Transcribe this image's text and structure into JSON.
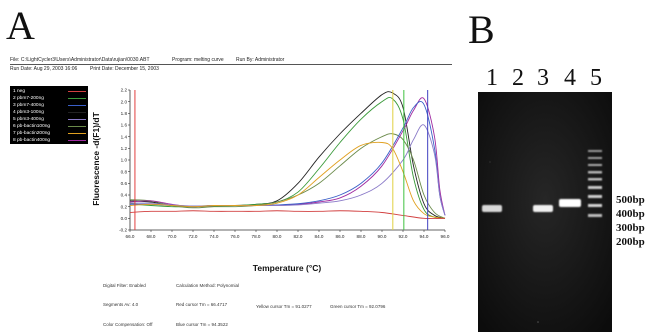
{
  "panel_a": {
    "letter": "A",
    "header": {
      "file_line": "File: C:\\LightCycler3\\Users\\Administrator\\Data\\rujian\\0030.ABT",
      "program": "Program:  melting curve",
      "run_by": "Run By: Administrator",
      "run_date": "Run Date:  Aug 29, 2003 16:06",
      "print_date": "Print Date:  December 15, 2003"
    },
    "footer": {
      "digital_filter": "Digital Filter: Enabled",
      "calc_method": "Calculation Method: Polynomial",
      "segment": "Segments Av: 4.0",
      "red_tm": "Red cursor Tm = 66.4717",
      "yellow_tm": "Yellow cursor Tm = 91.0277",
      "green_tm": "Green cursor Tm = 92.0796",
      "color_comp": "Color Compensation: Off",
      "blue_tm": "Blue cursor Tm = 94.3522"
    }
  },
  "chart_data": {
    "type": "line",
    "title": "",
    "xlabel": "Temperature (°C)",
    "ylabel": "Fluorescence -d(F1)/dT",
    "xlim": [
      66.0,
      96.0
    ],
    "ylim": [
      -0.2,
      2.2
    ],
    "xticks": [
      "66.0",
      "68.0",
      "70.0",
      "72.0",
      "74.0",
      "76.0",
      "78.0",
      "80.0",
      "82.0",
      "84.0",
      "86.0",
      "88.0",
      "90.0",
      "92.0",
      "94.0",
      "96.0"
    ],
    "yticks": [
      "2.2",
      "2.0",
      "1.8",
      "1.6",
      "1.4",
      "1.2",
      "1.0",
      "0.8",
      "0.6",
      "0.4",
      "0.2",
      "0.0",
      "-0.2"
    ],
    "legend_position": "top-left, outside plot",
    "series": [
      {
        "name": "1 neg",
        "color": "#d24040"
      },
      {
        "name": "2 pbm7-200ng",
        "color": "#3a9a3a"
      },
      {
        "name": "3 pbm7-400ng",
        "color": "#3a5fc8"
      },
      {
        "name": "4 pbm3-100ng",
        "color": "#222222"
      },
      {
        "name": "5 pbm3-400ng",
        "color": "#8a7ac8"
      },
      {
        "name": "6 pb-bactin100ng",
        "color": "#6a8a4a"
      },
      {
        "name": "7 pb-bactin200ng",
        "color": "#e0a020"
      },
      {
        "name": "8 pb-bactin400ng",
        "color": "#a02aa0"
      }
    ],
    "cursors": [
      {
        "label": "Red",
        "x": 66.47,
        "color": "#e04040"
      },
      {
        "label": "Yellow",
        "x": 91.03,
        "color": "#e0d040"
      },
      {
        "label": "Green",
        "x": 92.08,
        "color": "#40c040"
      },
      {
        "label": "Blue",
        "x": 94.35,
        "color": "#4040c0"
      }
    ],
    "curves": [
      {
        "series": 3,
        "points": [
          [
            66,
            0.3
          ],
          [
            68,
            0.28
          ],
          [
            70,
            0.22
          ],
          [
            72,
            0.2
          ],
          [
            74,
            0.22
          ],
          [
            76,
            0.22
          ],
          [
            78,
            0.24
          ],
          [
            80,
            0.3
          ],
          [
            82,
            0.6
          ],
          [
            84,
            1.05
          ],
          [
            86,
            1.45
          ],
          [
            88,
            1.8
          ],
          [
            90,
            2.12
          ],
          [
            91,
            2.15
          ],
          [
            92,
            1.9
          ],
          [
            93,
            0.9
          ],
          [
            94,
            0.25
          ],
          [
            95,
            0.05
          ],
          [
            96,
            0.0
          ]
        ]
      },
      {
        "series": 1,
        "points": [
          [
            66,
            0.25
          ],
          [
            68,
            0.22
          ],
          [
            70,
            0.2
          ],
          [
            72,
            0.2
          ],
          [
            74,
            0.21
          ],
          [
            76,
            0.22
          ],
          [
            78,
            0.24
          ],
          [
            80,
            0.28
          ],
          [
            82,
            0.45
          ],
          [
            84,
            0.85
          ],
          [
            86,
            1.3
          ],
          [
            88,
            1.7
          ],
          [
            90,
            2.0
          ],
          [
            91,
            2.05
          ],
          [
            92,
            1.7
          ],
          [
            93,
            0.7
          ],
          [
            94,
            0.15
          ],
          [
            95,
            0.02
          ],
          [
            96,
            0.0
          ]
        ]
      },
      {
        "series": 5,
        "points": [
          [
            66,
            0.32
          ],
          [
            68,
            0.3
          ],
          [
            70,
            0.22
          ],
          [
            72,
            0.18
          ],
          [
            74,
            0.2
          ],
          [
            76,
            0.2
          ],
          [
            78,
            0.22
          ],
          [
            80,
            0.28
          ],
          [
            82,
            0.4
          ],
          [
            84,
            0.6
          ],
          [
            86,
            0.9
          ],
          [
            88,
            1.2
          ],
          [
            90,
            1.4
          ],
          [
            91,
            1.45
          ],
          [
            92,
            1.35
          ],
          [
            93,
            1.0
          ],
          [
            94,
            0.4
          ],
          [
            95,
            0.1
          ],
          [
            96,
            0.0
          ]
        ]
      },
      {
        "series": 7,
        "points": [
          [
            66,
            0.28
          ],
          [
            68,
            0.3
          ],
          [
            70,
            0.24
          ],
          [
            72,
            0.2
          ],
          [
            74,
            0.22
          ],
          [
            76,
            0.22
          ],
          [
            78,
            0.22
          ],
          [
            80,
            0.22
          ],
          [
            82,
            0.24
          ],
          [
            84,
            0.28
          ],
          [
            86,
            0.35
          ],
          [
            88,
            0.55
          ],
          [
            90,
            0.9
          ],
          [
            92,
            1.5
          ],
          [
            93,
            1.85
          ],
          [
            94,
            2.05
          ],
          [
            95,
            1.4
          ],
          [
            95.5,
            0.5
          ],
          [
            96,
            0.05
          ]
        ]
      },
      {
        "series": 2,
        "points": [
          [
            66,
            0.24
          ],
          [
            68,
            0.24
          ],
          [
            70,
            0.22
          ],
          [
            72,
            0.21
          ],
          [
            74,
            0.22
          ],
          [
            76,
            0.22
          ],
          [
            78,
            0.22
          ],
          [
            80,
            0.23
          ],
          [
            82,
            0.25
          ],
          [
            84,
            0.3
          ],
          [
            86,
            0.4
          ],
          [
            88,
            0.6
          ],
          [
            90,
            0.95
          ],
          [
            92,
            1.55
          ],
          [
            93,
            1.9
          ],
          [
            94,
            1.95
          ],
          [
            95,
            1.2
          ],
          [
            95.5,
            0.4
          ],
          [
            96,
            0.05
          ]
        ]
      },
      {
        "series": 4,
        "points": [
          [
            66,
            0.26
          ],
          [
            68,
            0.26
          ],
          [
            70,
            0.23
          ],
          [
            72,
            0.21
          ],
          [
            74,
            0.22
          ],
          [
            76,
            0.22
          ],
          [
            78,
            0.22
          ],
          [
            80,
            0.22
          ],
          [
            82,
            0.23
          ],
          [
            84,
            0.26
          ],
          [
            86,
            0.3
          ],
          [
            88,
            0.4
          ],
          [
            90,
            0.6
          ],
          [
            92,
            1.0
          ],
          [
            93,
            1.35
          ],
          [
            94,
            1.6
          ],
          [
            95,
            1.1
          ],
          [
            95.5,
            0.4
          ],
          [
            96,
            0.05
          ]
        ]
      },
      {
        "series": 6,
        "points": [
          [
            66,
            0.22
          ],
          [
            68,
            0.24
          ],
          [
            70,
            0.22
          ],
          [
            72,
            0.2
          ],
          [
            74,
            0.22
          ],
          [
            76,
            0.22
          ],
          [
            78,
            0.22
          ],
          [
            80,
            0.26
          ],
          [
            82,
            0.4
          ],
          [
            84,
            0.7
          ],
          [
            86,
            1.0
          ],
          [
            88,
            1.25
          ],
          [
            90,
            1.3
          ],
          [
            91,
            1.2
          ],
          [
            92,
            0.8
          ],
          [
            93,
            0.3
          ],
          [
            94,
            0.08
          ],
          [
            95,
            0.02
          ],
          [
            96,
            0.0
          ]
        ]
      },
      {
        "series": 0,
        "points": [
          [
            66,
            0.1
          ],
          [
            68,
            0.12
          ],
          [
            70,
            0.12
          ],
          [
            72,
            0.13
          ],
          [
            74,
            0.12
          ],
          [
            76,
            0.12
          ],
          [
            78,
            0.12
          ],
          [
            80,
            0.13
          ],
          [
            82,
            0.12
          ],
          [
            84,
            0.12
          ],
          [
            86,
            0.13
          ],
          [
            88,
            0.12
          ],
          [
            90,
            0.1
          ],
          [
            92,
            0.05
          ],
          [
            94,
            0.0
          ],
          [
            96,
            0.0
          ]
        ]
      }
    ]
  },
  "panel_b": {
    "letter": "B",
    "lanes": [
      "1",
      "2",
      "3",
      "4",
      "5"
    ],
    "ladder_labels": [
      "500bp",
      "400bp",
      "300bp",
      "200bp"
    ]
  }
}
